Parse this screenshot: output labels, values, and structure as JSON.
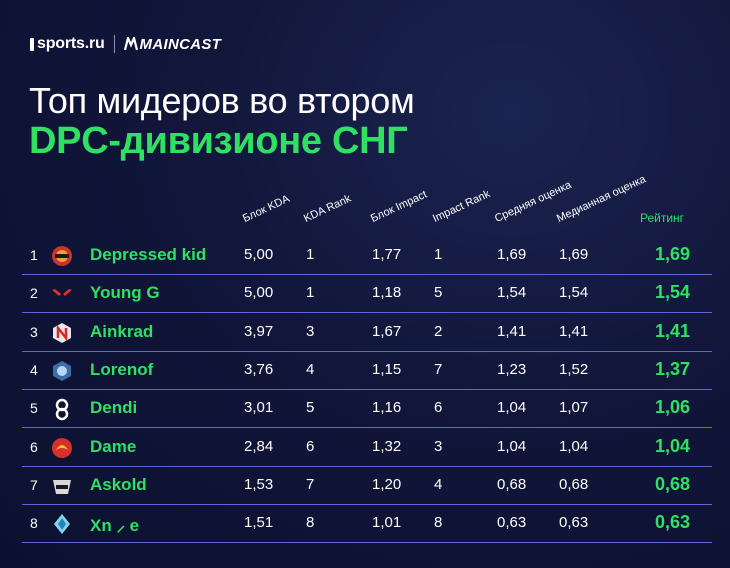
{
  "brand": {
    "sports": "sports.ru",
    "maincast": "MAINCAST"
  },
  "title": {
    "line1": "Топ мидеров во втором",
    "line2": "DPC-дивизионе СНГ"
  },
  "columns": [
    "Блок KDA",
    "KDA Rank",
    "Блок Impact",
    "Impact Rank",
    "Средняя оценка",
    "Медианная оценка"
  ],
  "rating_header": "Рейтинг",
  "colors": {
    "accent": "#2fe063",
    "divider": "#6066d6",
    "background": "#11163a"
  },
  "rows": [
    {
      "rank": "1",
      "name": "Depressed kid",
      "logo": "team-logo-icon",
      "kda": "5,00",
      "kda_rank": "1",
      "impact": "1,77",
      "impact_rank": "1",
      "avg": "1,69",
      "median": "1,69",
      "rating": "1,69"
    },
    {
      "rank": "2",
      "name": "Young G",
      "logo": "team-logo-icon",
      "kda": "5,00",
      "kda_rank": "1",
      "impact": "1,18",
      "impact_rank": "5",
      "avg": "1,54",
      "median": "1,54",
      "rating": "1,54"
    },
    {
      "rank": "3",
      "name": "Ainkrad",
      "logo": "team-logo-icon",
      "kda": "3,97",
      "kda_rank": "3",
      "impact": "1,67",
      "impact_rank": "2",
      "avg": "1,41",
      "median": "1,41",
      "rating": "1,41"
    },
    {
      "rank": "4",
      "name": "Lorenof",
      "logo": "team-logo-icon",
      "kda": "3,76",
      "kda_rank": "4",
      "impact": "1,15",
      "impact_rank": "7",
      "avg": "1,23",
      "median": "1,52",
      "rating": "1,37"
    },
    {
      "rank": "5",
      "name": "Dendi",
      "logo": "team-logo-icon",
      "kda": "3,01",
      "kda_rank": "5",
      "impact": "1,16",
      "impact_rank": "6",
      "avg": "1,04",
      "median": "1,07",
      "rating": "1,06"
    },
    {
      "rank": "6",
      "name": "Dame",
      "logo": "team-logo-icon",
      "kda": "2,84",
      "kda_rank": "6",
      "impact": "1,32",
      "impact_rank": "3",
      "avg": "1,04",
      "median": "1,04",
      "rating": "1,04"
    },
    {
      "rank": "7",
      "name": "Askold",
      "logo": "team-logo-icon",
      "kda": "1,53",
      "kda_rank": "7",
      "impact": "1,20",
      "impact_rank": "4",
      "avg": "0,68",
      "median": "0,68",
      "rating": "0,68"
    },
    {
      "rank": "8",
      "name": "Xn ⸝ e",
      "logo": "team-logo-icon",
      "kda": "1,51",
      "kda_rank": "8",
      "impact": "1,01",
      "impact_rank": "8",
      "avg": "0,63",
      "median": "0,63",
      "rating": "0,63"
    }
  ]
}
